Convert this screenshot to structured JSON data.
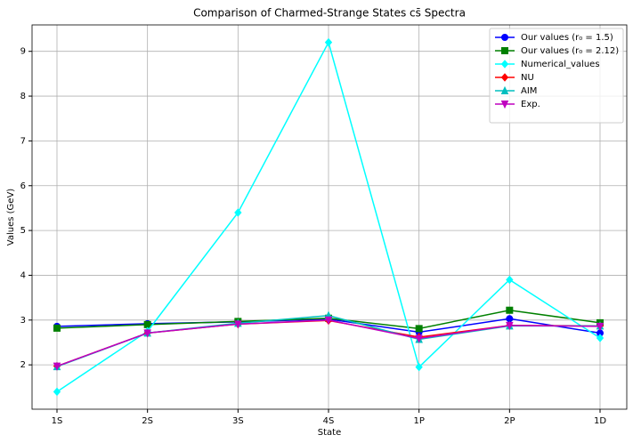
{
  "chart_data": {
    "type": "line",
    "title": "Comparison of Charmed-Strange States cs̄ Spectra",
    "x_label": "State",
    "y_label": "Values (GeV)",
    "categories": [
      "1S",
      "2S",
      "3S",
      "4S",
      "1P",
      "2P",
      "1D"
    ],
    "series": [
      {
        "name": "Our values (r₀ = 1.5)",
        "color": "#0000ff",
        "marker": "circle",
        "values": [
          2.86,
          2.92,
          2.96,
          3.02,
          2.73,
          3.03,
          2.71
        ]
      },
      {
        "name": "Our values (r₀ = 2.12)",
        "color": "#008000",
        "marker": "square",
        "values": [
          2.82,
          2.9,
          2.97,
          3.04,
          2.81,
          3.22,
          2.94
        ]
      },
      {
        "name": "Numerical_values",
        "color": "#00ffff",
        "marker": "diamond",
        "values": [
          1.4,
          2.75,
          5.4,
          9.2,
          1.95,
          3.9,
          2.6
        ]
      },
      {
        "name": "NU",
        "color": "#ff0000",
        "marker": "diamond",
        "values": [
          1.97,
          2.71,
          2.91,
          2.99,
          2.62,
          2.88,
          2.87
        ]
      },
      {
        "name": "AIM",
        "color": "#00bfbf",
        "marker": "triangle-up",
        "values": [
          1.96,
          2.71,
          2.93,
          3.1,
          2.57,
          2.87,
          2.87
        ]
      },
      {
        "name": "Exp.",
        "color": "#bf00bf",
        "marker": "triangle-down",
        "values": [
          1.97,
          2.71,
          2.91,
          3.0,
          2.59,
          2.88,
          2.86
        ]
      }
    ],
    "ylim": [
      1.01,
      9.59
    ],
    "yticks": [
      2,
      3,
      4,
      5,
      6,
      7,
      8,
      9
    ],
    "grid": true,
    "legend": "upper right"
  }
}
